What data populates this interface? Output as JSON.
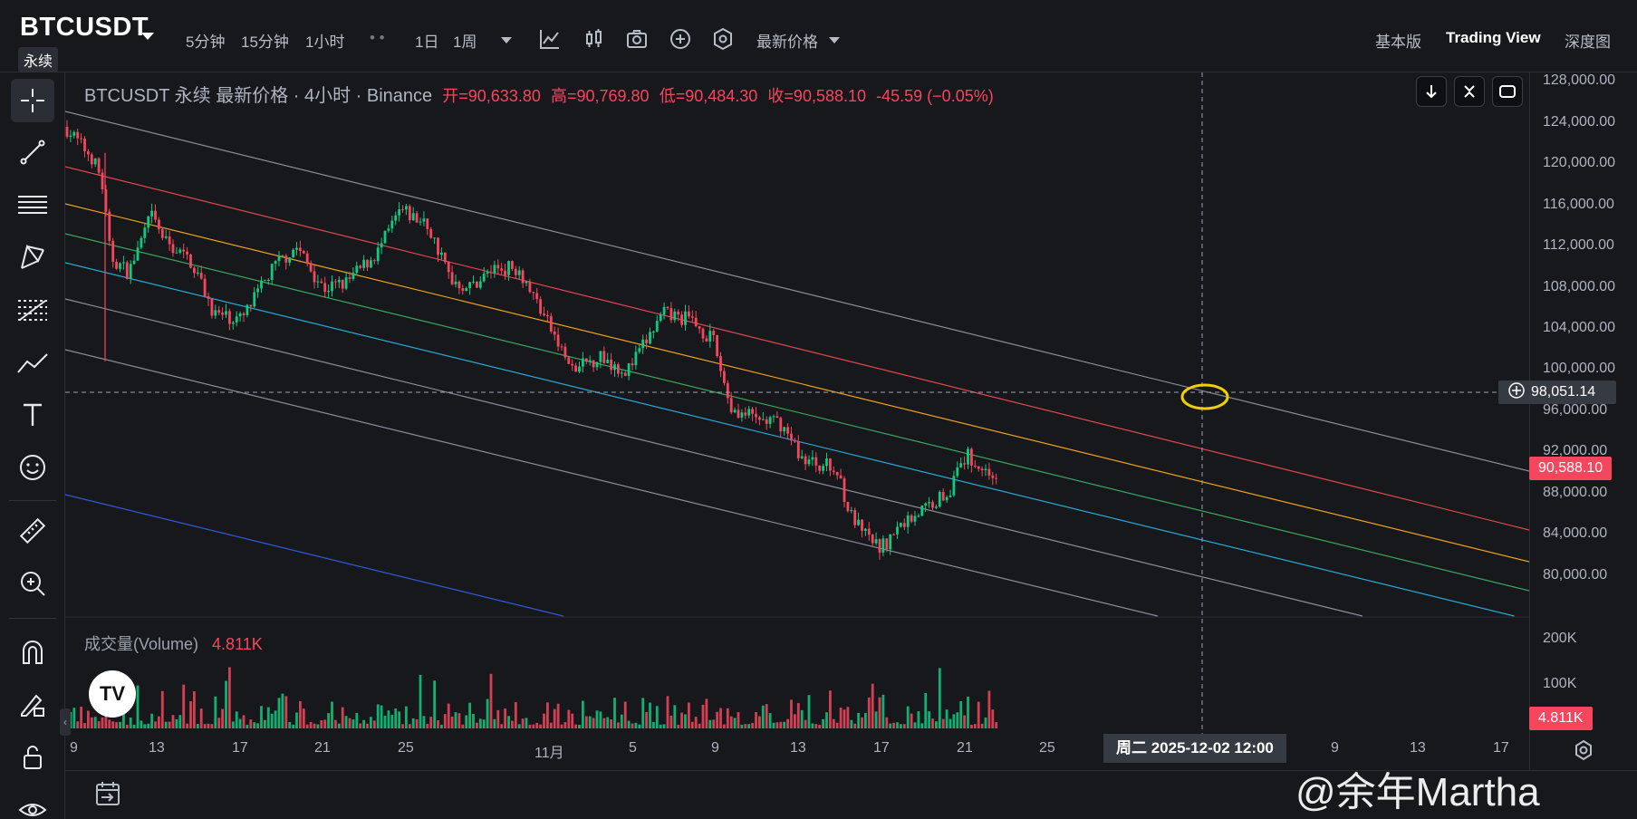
{
  "header": {
    "symbol": "BTCUSDT",
    "contract_type": "永续",
    "timeframes": [
      "5分钟",
      "15分钟",
      "1小时",
      "1日",
      "1周"
    ],
    "price_type": "最新价格",
    "views": [
      "基本版",
      "Trading View",
      "深度图"
    ],
    "active_view": "Trading View"
  },
  "legend": {
    "title": "BTCUSDT 永续 最新价格 · 4小时 · Binance",
    "open": "开=90,633.80",
    "high": "高=90,769.80",
    "low": "低=90,484.30",
    "close": "收=90,588.10",
    "change": "-45.59 (−0.05%)"
  },
  "volume_legend": {
    "label": "成交量(Volume)",
    "value": "4.811K"
  },
  "price_axis": {
    "ticks": [
      "128,000.00",
      "124,000.00",
      "120,000.00",
      "116,000.00",
      "112,000.00",
      "108,000.00",
      "104,000.00",
      "100,000.00",
      "96,000.00",
      "92,000.00",
      "88,000.00",
      "84,000.00",
      "80,000.00"
    ],
    "crosshair_price": "98,051.14",
    "last_price": "90,588.10",
    "last_price_value": 90588.1,
    "crosshair_price_value": 98051.14,
    "volume_ticks": [
      "200K",
      "100K"
    ],
    "volume_last": "4.811K"
  },
  "time_axis": {
    "ticks": [
      "9",
      "13",
      "17",
      "21",
      "25",
      "11月",
      "5",
      "9",
      "13",
      "17",
      "21",
      "25",
      "9",
      "13",
      "17"
    ],
    "crosshair_date": "周二 2025-12-02   12:00"
  },
  "colors": {
    "up": "#0ecb81",
    "down": "#f6465d",
    "background": "#17181c",
    "channel_gray": "#8a8e96",
    "channel_red": "#e0484c",
    "channel_orange": "#f0a020",
    "channel_green": "#3aa85a",
    "channel_cyan": "#2aa8d8",
    "channel_blue": "#2f5bd8",
    "highlight_circle": "#f0d000"
  },
  "watermark": "@余年Martha",
  "tv_logo": "TV",
  "icons": {
    "toolbar": [
      "indicator-icon",
      "candle-type-icon",
      "camera-icon",
      "plus-circle-icon",
      "settings-hex-icon"
    ],
    "left": [
      "crosshair-icon",
      "trendline-icon",
      "horizontal-lines-icon",
      "pattern-icon",
      "fib-icon",
      "path-icon",
      "text-icon",
      "emoji-icon",
      "ruler-icon",
      "zoom-icon",
      "magnet-icon",
      "lock-pencil-icon",
      "lock-icon",
      "eye-icon"
    ]
  }
}
